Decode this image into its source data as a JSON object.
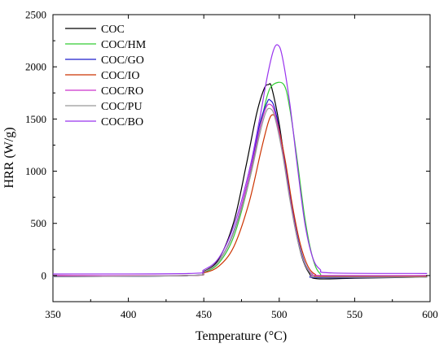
{
  "chart_data": {
    "type": "line",
    "xlabel": "Temperature (°C)",
    "ylabel": "HRR (W/g)",
    "xlim": [
      350,
      600
    ],
    "ylim": [
      -250,
      2500
    ],
    "x_ticks": [
      350,
      400,
      450,
      500,
      550,
      600
    ],
    "y_ticks": [
      0,
      500,
      1000,
      1500,
      2000,
      2500
    ],
    "grid": false,
    "legend_position": "top-left",
    "series": [
      {
        "name": "COC",
        "color": "#000000",
        "points": [
          [
            350,
            -10
          ],
          [
            440,
            0
          ],
          [
            450,
            40
          ],
          [
            460,
            160
          ],
          [
            470,
            520
          ],
          [
            478,
            1050
          ],
          [
            485,
            1550
          ],
          [
            490,
            1790
          ],
          [
            493,
            1830
          ],
          [
            495,
            1800
          ],
          [
            500,
            1450
          ],
          [
            505,
            950
          ],
          [
            510,
            500
          ],
          [
            515,
            180
          ],
          [
            520,
            20
          ],
          [
            525,
            -30
          ],
          [
            550,
            -25
          ],
          [
            598,
            -15
          ]
        ]
      },
      {
        "name": "COC/HM",
        "color": "#33cc33",
        "points": [
          [
            350,
            -5
          ],
          [
            440,
            0
          ],
          [
            450,
            30
          ],
          [
            460,
            120
          ],
          [
            470,
            380
          ],
          [
            480,
            900
          ],
          [
            487,
            1400
          ],
          [
            492,
            1720
          ],
          [
            496,
            1830
          ],
          [
            503,
            1830
          ],
          [
            507,
            1600
          ],
          [
            512,
            1100
          ],
          [
            517,
            550
          ],
          [
            522,
            180
          ],
          [
            527,
            20
          ],
          [
            535,
            -5
          ],
          [
            598,
            -5
          ]
        ]
      },
      {
        "name": "COC/GO",
        "color": "#1f1fcc",
        "points": [
          [
            350,
            -10
          ],
          [
            440,
            0
          ],
          [
            450,
            35
          ],
          [
            460,
            140
          ],
          [
            470,
            430
          ],
          [
            480,
            950
          ],
          [
            487,
            1450
          ],
          [
            492,
            1660
          ],
          [
            494,
            1680
          ],
          [
            497,
            1600
          ],
          [
            502,
            1250
          ],
          [
            507,
            780
          ],
          [
            512,
            380
          ],
          [
            517,
            120
          ],
          [
            522,
            10
          ],
          [
            527,
            -20
          ],
          [
            598,
            -15
          ]
        ]
      },
      {
        "name": "COC/IO",
        "color": "#cc3300",
        "points": [
          [
            350,
            0
          ],
          [
            440,
            0
          ],
          [
            450,
            25
          ],
          [
            460,
            90
          ],
          [
            470,
            280
          ],
          [
            480,
            700
          ],
          [
            488,
            1200
          ],
          [
            493,
            1480
          ],
          [
            496,
            1540
          ],
          [
            499,
            1450
          ],
          [
            504,
            1100
          ],
          [
            509,
            650
          ],
          [
            514,
            300
          ],
          [
            519,
            90
          ],
          [
            524,
            10
          ],
          [
            530,
            -10
          ],
          [
            598,
            -10
          ]
        ]
      },
      {
        "name": "COC/RO",
        "color": "#cc33cc",
        "points": [
          [
            350,
            0
          ],
          [
            440,
            0
          ],
          [
            450,
            35
          ],
          [
            460,
            140
          ],
          [
            470,
            420
          ],
          [
            480,
            950
          ],
          [
            487,
            1400
          ],
          [
            491,
            1600
          ],
          [
            494,
            1640
          ],
          [
            497,
            1560
          ],
          [
            502,
            1200
          ],
          [
            507,
            750
          ],
          [
            512,
            360
          ],
          [
            517,
            110
          ],
          [
            522,
            15
          ],
          [
            528,
            0
          ],
          [
            598,
            0
          ]
        ]
      },
      {
        "name": "COC/PU",
        "color": "#999999",
        "points": [
          [
            350,
            -10
          ],
          [
            440,
            0
          ],
          [
            450,
            35
          ],
          [
            460,
            140
          ],
          [
            470,
            420
          ],
          [
            480,
            900
          ],
          [
            487,
            1350
          ],
          [
            491,
            1560
          ],
          [
            494,
            1600
          ],
          [
            497,
            1520
          ],
          [
            502,
            1180
          ],
          [
            507,
            730
          ],
          [
            512,
            350
          ],
          [
            517,
            110
          ],
          [
            522,
            5
          ],
          [
            528,
            -15
          ],
          [
            598,
            -15
          ]
        ]
      },
      {
        "name": "COC/BO",
        "color": "#9933ee",
        "points": [
          [
            350,
            15
          ],
          [
            440,
            20
          ],
          [
            450,
            55
          ],
          [
            460,
            170
          ],
          [
            470,
            480
          ],
          [
            480,
            1000
          ],
          [
            487,
            1500
          ],
          [
            492,
            1900
          ],
          [
            496,
            2150
          ],
          [
            499,
            2210
          ],
          [
            502,
            2100
          ],
          [
            507,
            1650
          ],
          [
            512,
            1050
          ],
          [
            517,
            500
          ],
          [
            522,
            180
          ],
          [
            527,
            60
          ],
          [
            535,
            25
          ],
          [
            598,
            20
          ]
        ]
      }
    ]
  }
}
